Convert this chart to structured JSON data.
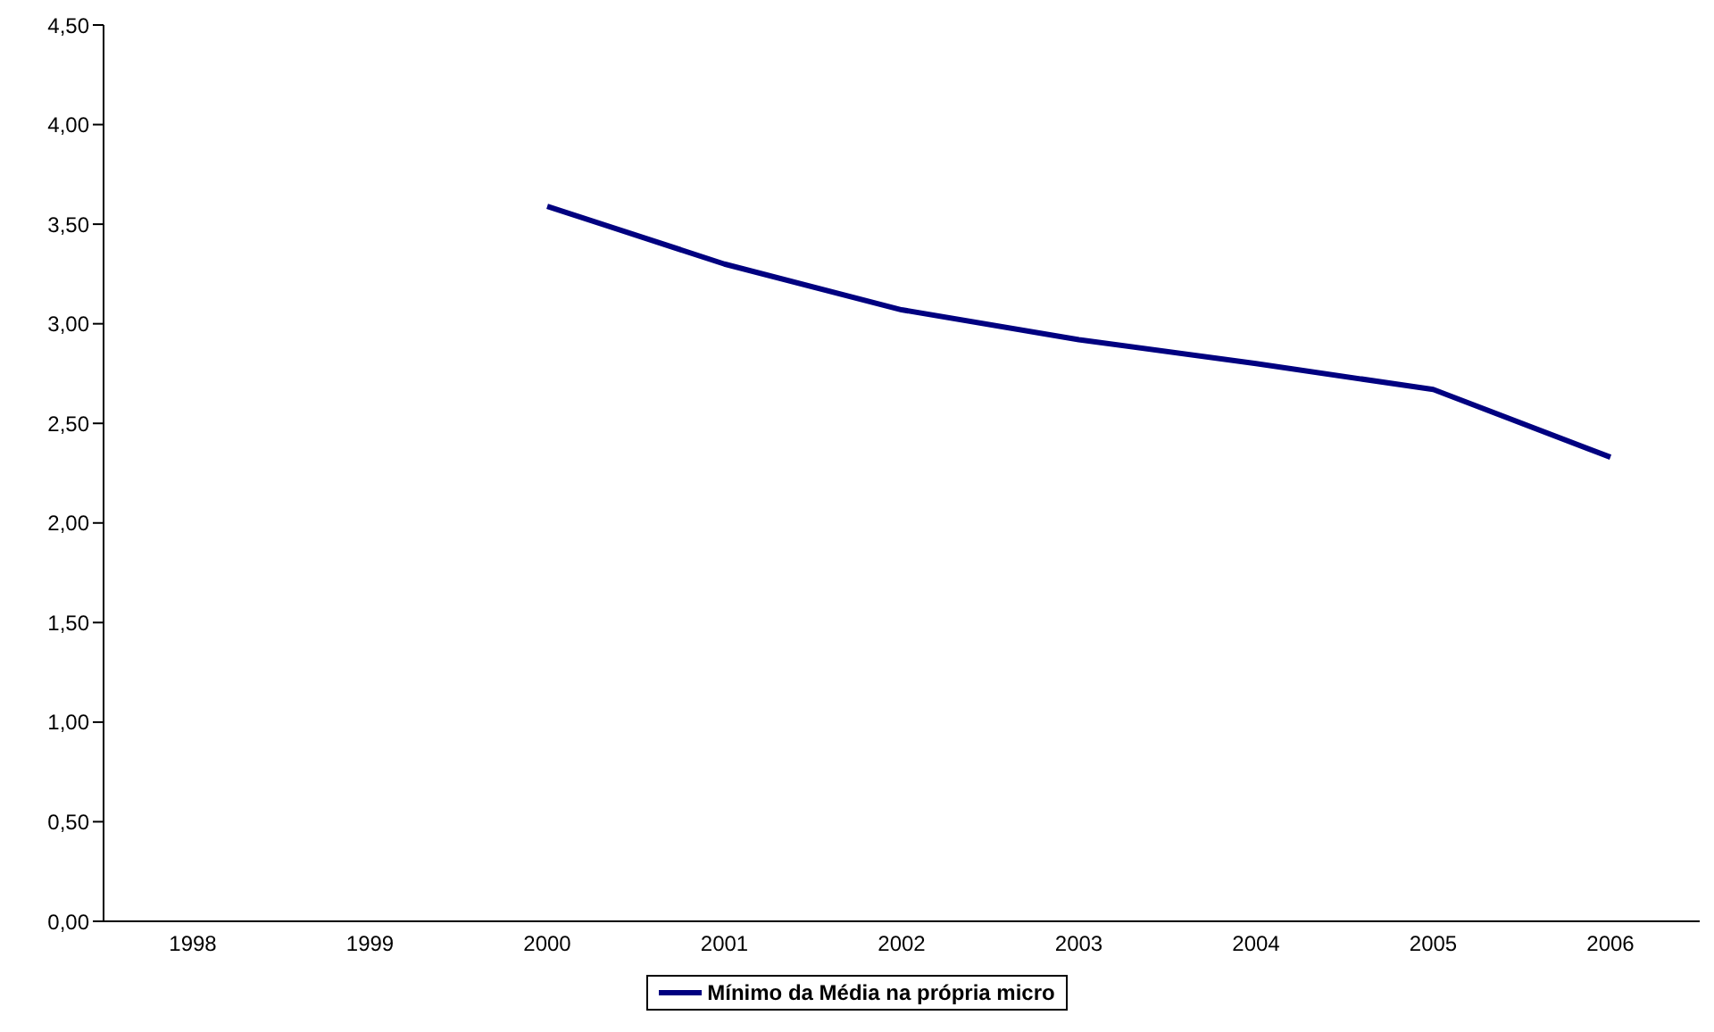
{
  "chart_data": {
    "type": "line",
    "categories": [
      "1998",
      "1999",
      "2000",
      "2001",
      "2002",
      "2003",
      "2004",
      "2005",
      "2006"
    ],
    "series": [
      {
        "name": "Mínimo da Média na própria micro",
        "color": "#000080",
        "values": [
          null,
          null,
          3.59,
          3.3,
          3.07,
          2.92,
          2.8,
          2.67,
          2.33
        ]
      }
    ],
    "ylim": [
      0,
      4.5
    ],
    "yticks": [
      {
        "value": 0,
        "label": "0,00"
      },
      {
        "value": 0.5,
        "label": "0,50"
      },
      {
        "value": 1,
        "label": "1,00"
      },
      {
        "value": 1.5,
        "label": "1,50"
      },
      {
        "value": 2,
        "label": "2,00"
      },
      {
        "value": 2.5,
        "label": "2,50"
      },
      {
        "value": 3,
        "label": "3,00"
      },
      {
        "value": 3.5,
        "label": "3,50"
      },
      {
        "value": 4,
        "label": "4,00"
      },
      {
        "value": 4.5,
        "label": "4,50"
      }
    ],
    "grid": false,
    "legend": "bottom",
    "marker": "none",
    "line_style": "solid"
  }
}
